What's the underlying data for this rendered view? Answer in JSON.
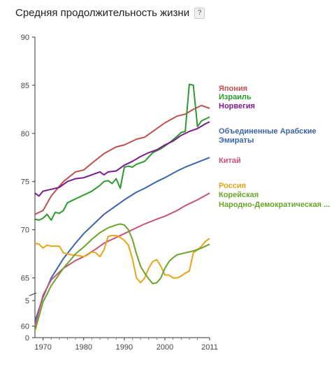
{
  "header": {
    "title": "Средняя продолжительность жизни",
    "help_label": "?"
  },
  "chart_data": {
    "type": "line",
    "title": "Средняя продолжительность жизни",
    "xlabel": "",
    "ylabel": "",
    "xlim": [
      1968,
      2011
    ],
    "ylim": [
      0,
      90
    ],
    "x_ticks": [
      "1970",
      "1980",
      "1990",
      "2000",
      "2011"
    ],
    "y_ticks": [
      "0",
      "5",
      "60",
      "65",
      "70",
      "75",
      "80",
      "85",
      "90"
    ],
    "legend_position": "right",
    "grid": false,
    "series": [
      {
        "name": "Япония",
        "color": "#c0504d",
        "points": [
          [
            1968,
            71.6
          ],
          [
            1970,
            72.0
          ],
          [
            1972,
            73.5
          ],
          [
            1975,
            75.0
          ],
          [
            1978,
            76.0
          ],
          [
            1980,
            76.2
          ],
          [
            1982,
            76.9
          ],
          [
            1985,
            77.9
          ],
          [
            1988,
            78.6
          ],
          [
            1990,
            78.8
          ],
          [
            1993,
            79.4
          ],
          [
            1995,
            79.6
          ],
          [
            1998,
            80.5
          ],
          [
            2000,
            81.1
          ],
          [
            2003,
            81.8
          ],
          [
            2005,
            82.0
          ],
          [
            2007,
            82.5
          ],
          [
            2009,
            82.9
          ],
          [
            2011,
            82.6
          ]
        ]
      },
      {
        "name": "Израиль",
        "color": "#2b9a2b",
        "points": [
          [
            1968,
            71.1
          ],
          [
            1969,
            71.0
          ],
          [
            1970,
            71.2
          ],
          [
            1971,
            71.6
          ],
          [
            1972,
            71.0
          ],
          [
            1973,
            71.8
          ],
          [
            1974,
            71.7
          ],
          [
            1975,
            72.0
          ],
          [
            1976,
            72.8
          ],
          [
            1977,
            73.0
          ],
          [
            1978,
            73.2
          ],
          [
            1980,
            73.6
          ],
          [
            1982,
            74.0
          ],
          [
            1984,
            74.6
          ],
          [
            1985,
            75.0
          ],
          [
            1986,
            75.1
          ],
          [
            1987,
            74.8
          ],
          [
            1988,
            75.3
          ],
          [
            1989,
            74.3
          ],
          [
            1990,
            76.5
          ],
          [
            1991,
            76.6
          ],
          [
            1992,
            76.5
          ],
          [
            1993,
            76.8
          ],
          [
            1995,
            77.1
          ],
          [
            1997,
            78.0
          ],
          [
            1999,
            78.4
          ],
          [
            2001,
            79.0
          ],
          [
            2003,
            79.7
          ],
          [
            2004,
            80.1
          ],
          [
            2005,
            80.2
          ],
          [
            2006,
            85.1
          ],
          [
            2007,
            85.0
          ],
          [
            2008,
            80.7
          ],
          [
            2009,
            81.3
          ],
          [
            2010,
            81.5
          ],
          [
            2011,
            81.7
          ]
        ]
      },
      {
        "name": "Норвегия",
        "color": "#7b1a8f",
        "points": [
          [
            1968,
            73.8
          ],
          [
            1969,
            73.5
          ],
          [
            1970,
            74.0
          ],
          [
            1972,
            74.2
          ],
          [
            1974,
            74.4
          ],
          [
            1976,
            75.0
          ],
          [
            1978,
            75.3
          ],
          [
            1980,
            75.4
          ],
          [
            1982,
            75.7
          ],
          [
            1984,
            76.0
          ],
          [
            1985,
            75.7
          ],
          [
            1986,
            76.0
          ],
          [
            1988,
            76.1
          ],
          [
            1989,
            76.4
          ],
          [
            1990,
            76.7
          ],
          [
            1992,
            77.1
          ],
          [
            1994,
            77.6
          ],
          [
            1996,
            78.0
          ],
          [
            1998,
            78.3
          ],
          [
            2000,
            78.8
          ],
          [
            2002,
            79.2
          ],
          [
            2004,
            79.8
          ],
          [
            2006,
            80.2
          ],
          [
            2008,
            80.5
          ],
          [
            2010,
            81.0
          ],
          [
            2011,
            81.2
          ]
        ]
      },
      {
        "name": "Объединенные Арабские Эмираты",
        "color": "#3a64ab",
        "points": [
          [
            1968,
            60.5
          ],
          [
            1970,
            63.0
          ],
          [
            1972,
            65.0
          ],
          [
            1975,
            67.0
          ],
          [
            1978,
            68.6
          ],
          [
            1980,
            69.6
          ],
          [
            1983,
            70.8
          ],
          [
            1985,
            71.6
          ],
          [
            1988,
            72.5
          ],
          [
            1990,
            73.1
          ],
          [
            1993,
            73.9
          ],
          [
            1995,
            74.3
          ],
          [
            1998,
            75.0
          ],
          [
            2000,
            75.4
          ],
          [
            2003,
            76.1
          ],
          [
            2005,
            76.5
          ],
          [
            2008,
            77.0
          ],
          [
            2011,
            77.5
          ]
        ]
      },
      {
        "name": "Китай",
        "color": "#c8507a",
        "points": [
          [
            1968,
            60.0
          ],
          [
            1970,
            63.2
          ],
          [
            1972,
            64.8
          ],
          [
            1975,
            66.0
          ],
          [
            1978,
            66.8
          ],
          [
            1980,
            67.2
          ],
          [
            1983,
            68.0
          ],
          [
            1985,
            68.6
          ],
          [
            1988,
            69.2
          ],
          [
            1990,
            69.6
          ],
          [
            1993,
            70.2
          ],
          [
            1995,
            70.6
          ],
          [
            1998,
            71.1
          ],
          [
            2000,
            71.4
          ],
          [
            2003,
            72.0
          ],
          [
            2005,
            72.5
          ],
          [
            2008,
            73.1
          ],
          [
            2011,
            73.8
          ]
        ]
      },
      {
        "name": "Россия",
        "color": "#e8a317",
        "points": [
          [
            1968,
            68.6
          ],
          [
            1969,
            68.5
          ],
          [
            1970,
            68.1
          ],
          [
            1971,
            68.4
          ],
          [
            1972,
            68.3
          ],
          [
            1974,
            68.3
          ],
          [
            1975,
            67.6
          ],
          [
            1977,
            67.4
          ],
          [
            1979,
            67.3
          ],
          [
            1980,
            67.2
          ],
          [
            1981,
            67.4
          ],
          [
            1982,
            67.7
          ],
          [
            1983,
            67.6
          ],
          [
            1984,
            67.2
          ],
          [
            1985,
            67.9
          ],
          [
            1986,
            69.3
          ],
          [
            1987,
            69.4
          ],
          [
            1988,
            69.4
          ],
          [
            1989,
            69.2
          ],
          [
            1990,
            68.9
          ],
          [
            1991,
            68.4
          ],
          [
            1992,
            67.0
          ],
          [
            1993,
            65.0
          ],
          [
            1994,
            64.5
          ],
          [
            1995,
            65.0
          ],
          [
            1996,
            66.0
          ],
          [
            1997,
            66.7
          ],
          [
            1998,
            66.9
          ],
          [
            1999,
            66.2
          ],
          [
            2000,
            65.3
          ],
          [
            2001,
            65.3
          ],
          [
            2002,
            65.0
          ],
          [
            2003,
            65.0
          ],
          [
            2004,
            65.2
          ],
          [
            2005,
            65.5
          ],
          [
            2006,
            65.7
          ],
          [
            2007,
            67.6
          ],
          [
            2008,
            67.9
          ],
          [
            2009,
            68.3
          ],
          [
            2010,
            68.8
          ],
          [
            2011,
            69.1
          ]
        ]
      },
      {
        "name": "Корейская Народно-Демократическая ...",
        "color": "#6aa52a",
        "points": [
          [
            1968,
            59.5
          ],
          [
            1970,
            62.5
          ],
          [
            1972,
            64.2
          ],
          [
            1975,
            66.0
          ],
          [
            1978,
            67.5
          ],
          [
            1980,
            68.2
          ],
          [
            1982,
            69.0
          ],
          [
            1984,
            69.7
          ],
          [
            1986,
            70.2
          ],
          [
            1988,
            70.5
          ],
          [
            1989,
            70.6
          ],
          [
            1990,
            70.5
          ],
          [
            1991,
            70.0
          ],
          [
            1992,
            69.0
          ],
          [
            1993,
            67.5
          ],
          [
            1994,
            66.2
          ],
          [
            1995,
            65.5
          ],
          [
            1996,
            64.9
          ],
          [
            1997,
            64.4
          ],
          [
            1998,
            64.5
          ],
          [
            1999,
            65.0
          ],
          [
            2000,
            66.0
          ],
          [
            2001,
            66.7
          ],
          [
            2002,
            67.1
          ],
          [
            2003,
            67.4
          ],
          [
            2005,
            67.6
          ],
          [
            2007,
            67.8
          ],
          [
            2009,
            68.1
          ],
          [
            2011,
            68.5
          ]
        ]
      }
    ],
    "legend": [
      {
        "label": "Япония",
        "color": "#c0504d"
      },
      {
        "label": "Израиль",
        "color": "#2b9a2b"
      },
      {
        "label": "Норвегия",
        "color": "#7b1a8f"
      },
      {
        "label": "Объединенные Арабские",
        "color": "#3a64ab"
      },
      {
        "label": "Эмираты",
        "color": "#3a64ab"
      },
      {
        "label": "Китай",
        "color": "#c8507a"
      },
      {
        "label": "Россия",
        "color": "#e8a317"
      },
      {
        "label": "Корейская",
        "color": "#6aa52a"
      },
      {
        "label": "Народно-Демократическая ...",
        "color": "#6aa52a"
      }
    ]
  }
}
